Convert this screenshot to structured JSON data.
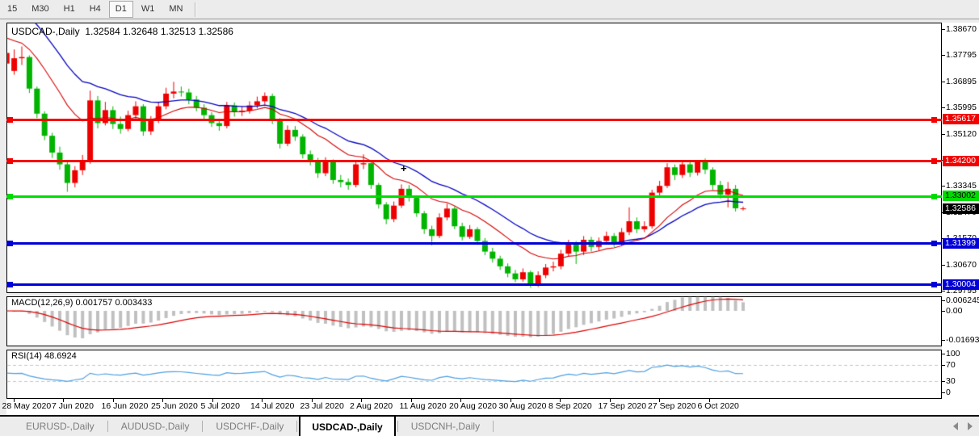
{
  "toolbar": {
    "items": [
      "15",
      "M30",
      "H1",
      "H4",
      "D1",
      "W1",
      "MN"
    ],
    "active": "D1"
  },
  "chart": {
    "title_symbol": "USDCAD-,Daily",
    "ohlc": {
      "open": "1.32584",
      "high": "1.32648",
      "low": "1.32513",
      "close": "1.32586"
    },
    "price_axis_labels": [
      "1.38670",
      "1.37795",
      "1.36895",
      "1.35995",
      "1.35120",
      "1.34245",
      "1.33345",
      "1.32470",
      "1.31570",
      "1.30670",
      "1.29795"
    ],
    "date_labels": [
      "28 May 2020",
      "7 Jun 2020",
      "16 Jun 2020",
      "25 Jun 2020",
      "5 Jul 2020",
      "14 Jul 2020",
      "23 Jul 2020",
      "2 Aug 2020",
      "11 Aug 2020",
      "20 Aug 2020",
      "30 Aug 2020",
      "8 Sep 2020",
      "17 Sep 2020",
      "27 Sep 2020",
      "6 Oct 2020"
    ],
    "lines": [
      {
        "price": 1.35617,
        "label": "1.35617",
        "color": "#f40000",
        "text_color": "#ffffff",
        "type": "resistance"
      },
      {
        "price": 1.342,
        "label": "1.34200",
        "color": "#f40000",
        "text_color": "#ffffff",
        "type": "resistance"
      },
      {
        "price": 1.33002,
        "label": "1.33002",
        "color": "#00dc00",
        "text_color": "#000000",
        "type": "support"
      },
      {
        "price": 1.31399,
        "label": "1.31399",
        "color": "#0000d8",
        "text_color": "#ffffff",
        "type": "support"
      },
      {
        "price": 1.30004,
        "label": "1.30004",
        "color": "#0000d8",
        "text_color": "#ffffff",
        "type": "support"
      }
    ],
    "current_price": {
      "price": 1.32586,
      "label": "1.32586",
      "bg": "#000000",
      "text_color": "#ffffff"
    }
  },
  "indicators": {
    "macd": {
      "label": "MACD(12,26,9)",
      "value_main": "0.001757",
      "value_signal": "0.003433",
      "axis_labels": [
        "0.006245",
        "0.00",
        "-0.016933"
      ],
      "histogram_color": "#c0c0c0",
      "signal_color": "#dd0000"
    },
    "rsi": {
      "label": "RSI(14)",
      "value": "48.6924",
      "axis_labels": [
        "100",
        "70",
        "30",
        "0"
      ],
      "levels": [
        70,
        30
      ],
      "line_color": "#4d9fe0"
    }
  },
  "chart_data": {
    "type": "candlestick",
    "symbol": "USDCAD-",
    "timeframe": "Daily",
    "bull_color": "#ee0000",
    "bear_color": "#00b400",
    "ma_fast_color": "#d40000",
    "ma_slow_color": "#0000c0",
    "y_range": [
      1.29795,
      1.3867
    ],
    "candles": [
      [
        1.375,
        1.379,
        1.374,
        1.3786
      ],
      [
        1.3725,
        1.3798,
        1.3712,
        1.3768
      ],
      [
        1.3768,
        1.3808,
        1.3745,
        1.3772
      ],
      [
        1.3772,
        1.3778,
        1.365,
        1.3665
      ],
      [
        1.3665,
        1.3672,
        1.3565,
        1.358
      ],
      [
        1.358,
        1.3588,
        1.349,
        1.3505
      ],
      [
        1.3505,
        1.3515,
        1.343,
        1.3448
      ],
      [
        1.3448,
        1.3468,
        1.339,
        1.3408
      ],
      [
        1.3408,
        1.342,
        1.3315,
        1.3345
      ],
      [
        1.3345,
        1.3402,
        1.333,
        1.3388
      ],
      [
        1.3388,
        1.344,
        1.3372,
        1.342
      ],
      [
        1.342,
        1.3658,
        1.341,
        1.3625
      ],
      [
        1.3625,
        1.364,
        1.353,
        1.3548
      ],
      [
        1.3548,
        1.362,
        1.354,
        1.3592
      ],
      [
        1.3592,
        1.3605,
        1.3528,
        1.3545
      ],
      [
        1.3545,
        1.357,
        1.3512,
        1.3528
      ],
      [
        1.3528,
        1.359,
        1.352,
        1.3575
      ],
      [
        1.3575,
        1.3622,
        1.3562,
        1.3605
      ],
      [
        1.3605,
        1.3612,
        1.3505,
        1.352
      ],
      [
        1.352,
        1.3572,
        1.3508,
        1.3558
      ],
      [
        1.3558,
        1.3618,
        1.3548,
        1.3605
      ],
      [
        1.3605,
        1.3668,
        1.3595,
        1.3648
      ],
      [
        1.3648,
        1.3688,
        1.3632,
        1.3655
      ],
      [
        1.3655,
        1.3672,
        1.3638,
        1.3652
      ],
      [
        1.3652,
        1.3665,
        1.3612,
        1.3628
      ],
      [
        1.3628,
        1.364,
        1.3588,
        1.36
      ],
      [
        1.36,
        1.3612,
        1.356,
        1.3575
      ],
      [
        1.3575,
        1.3585,
        1.3535,
        1.3548
      ],
      [
        1.3548,
        1.3562,
        1.3522,
        1.3538
      ],
      [
        1.3538,
        1.362,
        1.353,
        1.3608
      ],
      [
        1.3608,
        1.3618,
        1.357,
        1.3585
      ],
      [
        1.3585,
        1.3605,
        1.3572,
        1.359
      ],
      [
        1.359,
        1.3622,
        1.358,
        1.3608
      ],
      [
        1.3608,
        1.3638,
        1.3598,
        1.3622
      ],
      [
        1.3622,
        1.3652,
        1.361,
        1.364
      ],
      [
        1.364,
        1.3648,
        1.3545,
        1.3558
      ],
      [
        1.3558,
        1.3565,
        1.3462,
        1.3478
      ],
      [
        1.3478,
        1.354,
        1.347,
        1.3525
      ],
      [
        1.3525,
        1.3538,
        1.3488,
        1.3502
      ],
      [
        1.3502,
        1.351,
        1.3428,
        1.3442
      ],
      [
        1.3442,
        1.3455,
        1.3405,
        1.342
      ],
      [
        1.342,
        1.343,
        1.3362,
        1.3378
      ],
      [
        1.3378,
        1.3432,
        1.3368,
        1.3418
      ],
      [
        1.3418,
        1.3425,
        1.3342,
        1.3355
      ],
      [
        1.3355,
        1.3372,
        1.333,
        1.3348
      ],
      [
        1.3348,
        1.336,
        1.3322,
        1.3338
      ],
      [
        1.3338,
        1.342,
        1.333,
        1.3408
      ],
      [
        1.3408,
        1.3442,
        1.3392,
        1.3412
      ],
      [
        1.3412,
        1.342,
        1.3325,
        1.3338
      ],
      [
        1.3338,
        1.3345,
        1.3258,
        1.3272
      ],
      [
        1.3272,
        1.328,
        1.3205,
        1.3222
      ],
      [
        1.3222,
        1.3282,
        1.3212,
        1.3268
      ],
      [
        1.3268,
        1.334,
        1.326,
        1.3325
      ],
      [
        1.3325,
        1.3338,
        1.3282,
        1.3295
      ],
      [
        1.3295,
        1.3302,
        1.323,
        1.3242
      ],
      [
        1.3242,
        1.325,
        1.3172,
        1.3188
      ],
      [
        1.3188,
        1.32,
        1.3133,
        1.3165
      ],
      [
        1.3165,
        1.3242,
        1.3158,
        1.3228
      ],
      [
        1.3228,
        1.3275,
        1.3218,
        1.3258
      ],
      [
        1.3258,
        1.3265,
        1.3188,
        1.3198
      ],
      [
        1.3198,
        1.321,
        1.315,
        1.3162
      ],
      [
        1.3162,
        1.3202,
        1.3155,
        1.3188
      ],
      [
        1.3188,
        1.3195,
        1.3135,
        1.3148
      ],
      [
        1.3148,
        1.3158,
        1.31,
        1.3112
      ],
      [
        1.3112,
        1.3125,
        1.3075,
        1.3088
      ],
      [
        1.3088,
        1.3098,
        1.305,
        1.3062
      ],
      [
        1.3062,
        1.3072,
        1.3025,
        1.3038
      ],
      [
        1.3038,
        1.305,
        1.3008,
        1.3018
      ],
      [
        1.3018,
        1.3055,
        1.301,
        1.3042
      ],
      [
        1.3042,
        1.3048,
        1.299,
        1.2998
      ],
      [
        1.2998,
        1.3045,
        1.2992,
        1.3032
      ],
      [
        1.3032,
        1.307,
        1.3022,
        1.3058
      ],
      [
        1.3058,
        1.3078,
        1.3045,
        1.3062
      ],
      [
        1.3062,
        1.3118,
        1.3052,
        1.3105
      ],
      [
        1.3105,
        1.3152,
        1.3095,
        1.3138
      ],
      [
        1.3138,
        1.3148,
        1.307,
        1.3112
      ],
      [
        1.3112,
        1.3165,
        1.31,
        1.3152
      ],
      [
        1.3152,
        1.3162,
        1.3112,
        1.3128
      ],
      [
        1.3128,
        1.316,
        1.3115,
        1.3148
      ],
      [
        1.3148,
        1.318,
        1.3138,
        1.3165
      ],
      [
        1.3165,
        1.3175,
        1.3128,
        1.3142
      ],
      [
        1.3142,
        1.3192,
        1.3132,
        1.3178
      ],
      [
        1.3178,
        1.3262,
        1.3168,
        1.3215
      ],
      [
        1.3215,
        1.3228,
        1.3175,
        1.3188
      ],
      [
        1.3188,
        1.3215,
        1.3178,
        1.3198
      ],
      [
        1.3198,
        1.3322,
        1.319,
        1.3312
      ],
      [
        1.3312,
        1.3352,
        1.3298,
        1.3335
      ],
      [
        1.3335,
        1.3412,
        1.3328,
        1.3398
      ],
      [
        1.3398,
        1.3408,
        1.3355,
        1.3372
      ],
      [
        1.3372,
        1.342,
        1.3362,
        1.3408
      ],
      [
        1.3408,
        1.3418,
        1.3365,
        1.338
      ],
      [
        1.338,
        1.342,
        1.337,
        1.3418
      ],
      [
        1.3418,
        1.3428,
        1.3375,
        1.339
      ],
      [
        1.339,
        1.3398,
        1.3322,
        1.3338
      ],
      [
        1.3338,
        1.3352,
        1.3292,
        1.3305
      ],
      [
        1.3305,
        1.3348,
        1.3262,
        1.3325
      ],
      [
        1.3325,
        1.3338,
        1.3248,
        1.3259
      ],
      [
        1.32584,
        1.32648,
        1.32513,
        1.32586
      ]
    ]
  },
  "tabs": {
    "items": [
      "EURUSD-,Daily",
      "AUDUSD-,Daily",
      "USDCHF-,Daily",
      "USDCAD-,Daily",
      "USDCNH-,Daily"
    ],
    "active": "USDCAD-,Daily"
  },
  "tab_scroll": {
    "left_icon": "left-triangle",
    "right_icon": "right-triangle"
  }
}
